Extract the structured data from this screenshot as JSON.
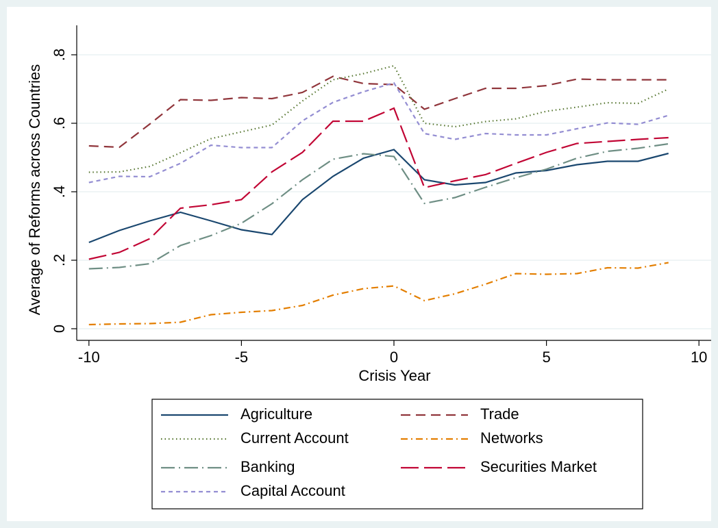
{
  "chart_data": {
    "type": "line",
    "x": [
      -10,
      -9,
      -8,
      -7,
      -6,
      -5,
      -4,
      -3,
      -2,
      -1,
      0,
      1,
      2,
      3,
      4,
      5,
      6,
      7,
      8,
      9
    ],
    "xlabel": "Crisis Year",
    "ylabel": "Average of Reforms across Countries",
    "xlim": [
      -10.4,
      10.4
    ],
    "xticks": [
      -10,
      -5,
      0,
      5,
      10
    ],
    "ylim": [
      -0.034,
      0.886
    ],
    "yticks": [
      {
        "value": 0,
        "label": "0"
      },
      {
        "value": 0.2,
        "label": ".2"
      },
      {
        "value": 0.4,
        "label": ".4"
      },
      {
        "value": 0.6,
        "label": ".6"
      },
      {
        "value": 0.8,
        "label": ".8"
      }
    ],
    "grid": true,
    "legend": "bottom",
    "series": [
      {
        "name": "Agriculture",
        "color": "#1a476f",
        "line_style": "solid",
        "values": [
          0.252,
          0.287,
          0.315,
          0.34,
          0.315,
          0.289,
          0.275,
          0.377,
          0.445,
          0.498,
          0.523,
          0.435,
          0.42,
          0.427,
          0.455,
          0.462,
          0.479,
          0.489,
          0.489,
          0.512
        ]
      },
      {
        "name": "Trade",
        "color": "#90353b",
        "line_style": "dash",
        "values": [
          0.534,
          0.53,
          0.598,
          0.669,
          0.667,
          0.675,
          0.672,
          0.69,
          0.737,
          0.716,
          0.713,
          0.641,
          0.672,
          0.702,
          0.702,
          0.71,
          0.729,
          0.727,
          0.727,
          0.727
        ]
      },
      {
        "name": "Current Account",
        "color": "#55752f",
        "line_style": "dot",
        "values": [
          0.457,
          0.458,
          0.474,
          0.514,
          0.555,
          0.575,
          0.595,
          0.665,
          0.727,
          0.745,
          0.768,
          0.6,
          0.59,
          0.605,
          0.613,
          0.635,
          0.647,
          0.66,
          0.658,
          0.7
        ]
      },
      {
        "name": "Networks",
        "color": "#e37e00",
        "line_style": "dashdot",
        "values": [
          0.012,
          0.014,
          0.015,
          0.019,
          0.041,
          0.048,
          0.053,
          0.068,
          0.098,
          0.117,
          0.125,
          0.082,
          0.102,
          0.13,
          0.161,
          0.159,
          0.161,
          0.178,
          0.177,
          0.193
        ]
      },
      {
        "name": "Banking",
        "color": "#6e8e84",
        "line_style": "longdashdot",
        "values": [
          0.175,
          0.179,
          0.19,
          0.243,
          0.272,
          0.308,
          0.365,
          0.435,
          0.495,
          0.511,
          0.503,
          0.366,
          0.383,
          0.413,
          0.441,
          0.466,
          0.498,
          0.518,
          0.527,
          0.54
        ]
      },
      {
        "name": "Securities Market",
        "color": "#c10534",
        "line_style": "longdash",
        "values": [
          0.203,
          0.223,
          0.263,
          0.352,
          0.362,
          0.377,
          0.458,
          0.515,
          0.606,
          0.606,
          0.644,
          0.412,
          0.432,
          0.45,
          0.483,
          0.515,
          0.541,
          0.547,
          0.553,
          0.558
        ]
      },
      {
        "name": "Capital Account",
        "color": "#938dd2",
        "line_style": "shortdash",
        "values": [
          0.427,
          0.445,
          0.444,
          0.483,
          0.536,
          0.529,
          0.529,
          0.607,
          0.661,
          0.692,
          0.718,
          0.57,
          0.553,
          0.57,
          0.566,
          0.566,
          0.584,
          0.601,
          0.597,
          0.623
        ]
      }
    ]
  }
}
